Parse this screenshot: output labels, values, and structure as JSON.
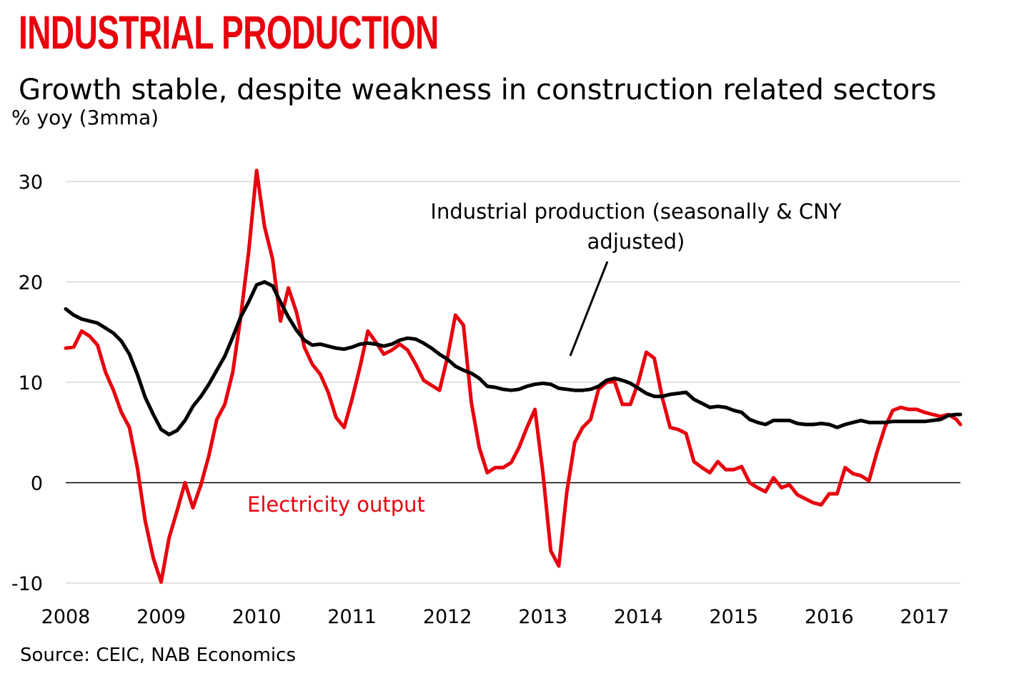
{
  "header": {
    "title": "INDUSTRIAL PRODUCTION",
    "subtitle": "Growth stable, despite weakness in construction related sectors",
    "unit": "% yoy (3mma)"
  },
  "footer": {
    "source": "Source: CEIC, NAB Economics"
  },
  "colors": {
    "title": "#e8000d",
    "electricity": "#e8000d",
    "industrial": "#000000",
    "grid": "#d0d0d0",
    "zero_line": "#000000"
  },
  "chart_data": {
    "type": "line",
    "title": "INDUSTRIAL PRODUCTION",
    "subtitle": "Growth stable, despite weakness in construction related sectors",
    "ylabel": "% yoy (3mma)",
    "xlim": [
      2008.0,
      2017.375
    ],
    "ylim": [
      -10,
      30
    ],
    "x_ticks": [
      "2008",
      "2009",
      "2010",
      "2011",
      "2012",
      "2013",
      "2014",
      "2015",
      "2016",
      "2017"
    ],
    "y_ticks": [
      "30",
      "20",
      "10",
      "0",
      "-10"
    ],
    "y_tick_values": [
      30,
      20,
      10,
      0,
      -10
    ],
    "grid": true,
    "annotations": [
      {
        "text": "Industrial production (seasonally & CNY adjusted)",
        "series": "Industrial production (seasonally & CNY adjusted)"
      },
      {
        "text": "Electricity output",
        "series": "Electricity output"
      }
    ],
    "series": [
      {
        "name": "Industrial production (seasonally & CNY adjusted)",
        "color": "#000000",
        "points": [
          [
            2008.0,
            17.3
          ],
          [
            2008.083,
            16.7
          ],
          [
            2008.167,
            16.3
          ],
          [
            2008.25,
            16.1
          ],
          [
            2008.333,
            15.9
          ],
          [
            2008.417,
            15.4
          ],
          [
            2008.5,
            14.9
          ],
          [
            2008.583,
            14.1
          ],
          [
            2008.667,
            12.8
          ],
          [
            2008.75,
            10.8
          ],
          [
            2008.833,
            8.5
          ],
          [
            2008.917,
            6.8
          ],
          [
            2009.0,
            5.3
          ],
          [
            2009.083,
            4.8
          ],
          [
            2009.167,
            5.2
          ],
          [
            2009.25,
            6.2
          ],
          [
            2009.333,
            7.6
          ],
          [
            2009.417,
            8.6
          ],
          [
            2009.5,
            9.8
          ],
          [
            2009.583,
            11.2
          ],
          [
            2009.667,
            12.6
          ],
          [
            2009.75,
            14.5
          ],
          [
            2009.833,
            16.5
          ],
          [
            2009.917,
            18.0
          ],
          [
            2010.0,
            19.7
          ],
          [
            2010.083,
            20.0
          ],
          [
            2010.167,
            19.6
          ],
          [
            2010.25,
            18.0
          ],
          [
            2010.333,
            16.5
          ],
          [
            2010.417,
            15.2
          ],
          [
            2010.5,
            14.2
          ],
          [
            2010.583,
            13.7
          ],
          [
            2010.667,
            13.8
          ],
          [
            2010.75,
            13.6
          ],
          [
            2010.833,
            13.4
          ],
          [
            2010.917,
            13.3
          ],
          [
            2011.0,
            13.5
          ],
          [
            2011.083,
            13.8
          ],
          [
            2011.167,
            13.9
          ],
          [
            2011.25,
            13.8
          ],
          [
            2011.333,
            13.6
          ],
          [
            2011.417,
            13.8
          ],
          [
            2011.5,
            14.2
          ],
          [
            2011.583,
            14.4
          ],
          [
            2011.667,
            14.3
          ],
          [
            2011.75,
            13.9
          ],
          [
            2011.833,
            13.4
          ],
          [
            2011.917,
            12.8
          ],
          [
            2012.0,
            12.3
          ],
          [
            2012.083,
            11.6
          ],
          [
            2012.167,
            11.2
          ],
          [
            2012.25,
            10.9
          ],
          [
            2012.333,
            10.4
          ],
          [
            2012.417,
            9.6
          ],
          [
            2012.5,
            9.5
          ],
          [
            2012.583,
            9.3
          ],
          [
            2012.667,
            9.2
          ],
          [
            2012.75,
            9.3
          ],
          [
            2012.833,
            9.6
          ],
          [
            2012.917,
            9.8
          ],
          [
            2013.0,
            9.9
          ],
          [
            2013.083,
            9.8
          ],
          [
            2013.167,
            9.4
          ],
          [
            2013.25,
            9.3
          ],
          [
            2013.333,
            9.2
          ],
          [
            2013.417,
            9.2
          ],
          [
            2013.5,
            9.3
          ],
          [
            2013.583,
            9.6
          ],
          [
            2013.667,
            10.2
          ],
          [
            2013.75,
            10.4
          ],
          [
            2013.833,
            10.2
          ],
          [
            2013.917,
            9.9
          ],
          [
            2014.0,
            9.4
          ],
          [
            2014.083,
            8.9
          ],
          [
            2014.167,
            8.6
          ],
          [
            2014.25,
            8.6
          ],
          [
            2014.333,
            8.8
          ],
          [
            2014.417,
            8.9
          ],
          [
            2014.5,
            9.0
          ],
          [
            2014.583,
            8.3
          ],
          [
            2014.667,
            7.9
          ],
          [
            2014.75,
            7.5
          ],
          [
            2014.833,
            7.6
          ],
          [
            2014.917,
            7.5
          ],
          [
            2015.0,
            7.2
          ],
          [
            2015.083,
            7.0
          ],
          [
            2015.167,
            6.3
          ],
          [
            2015.25,
            6.0
          ],
          [
            2015.333,
            5.8
          ],
          [
            2015.417,
            6.2
          ],
          [
            2015.5,
            6.2
          ],
          [
            2015.583,
            6.2
          ],
          [
            2015.667,
            5.9
          ],
          [
            2015.75,
            5.8
          ],
          [
            2015.833,
            5.8
          ],
          [
            2015.917,
            5.9
          ],
          [
            2016.0,
            5.8
          ],
          [
            2016.083,
            5.5
          ],
          [
            2016.167,
            5.8
          ],
          [
            2016.25,
            6.0
          ],
          [
            2016.333,
            6.2
          ],
          [
            2016.417,
            6.0
          ],
          [
            2016.5,
            6.0
          ],
          [
            2016.583,
            6.0
          ],
          [
            2016.667,
            6.1
          ],
          [
            2016.75,
            6.1
          ],
          [
            2016.833,
            6.1
          ],
          [
            2016.917,
            6.1
          ],
          [
            2017.0,
            6.1
          ],
          [
            2017.083,
            6.2
          ],
          [
            2017.167,
            6.3
          ],
          [
            2017.25,
            6.7
          ],
          [
            2017.333,
            6.8
          ],
          [
            2017.375,
            6.8
          ]
        ]
      },
      {
        "name": "Electricity output",
        "color": "#e8000d",
        "points": [
          [
            2008.0,
            13.4
          ],
          [
            2008.083,
            13.5
          ],
          [
            2008.167,
            15.1
          ],
          [
            2008.25,
            14.6
          ],
          [
            2008.333,
            13.7
          ],
          [
            2008.417,
            11.0
          ],
          [
            2008.5,
            9.2
          ],
          [
            2008.583,
            7.0
          ],
          [
            2008.667,
            5.5
          ],
          [
            2008.75,
            1.5
          ],
          [
            2008.833,
            -3.8
          ],
          [
            2008.917,
            -7.5
          ],
          [
            2009.0,
            -9.9
          ],
          [
            2009.083,
            -5.5
          ],
          [
            2009.167,
            -2.8
          ],
          [
            2009.25,
            0.0
          ],
          [
            2009.333,
            -2.5
          ],
          [
            2009.417,
            -0.2
          ],
          [
            2009.5,
            2.7
          ],
          [
            2009.583,
            6.3
          ],
          [
            2009.667,
            7.8
          ],
          [
            2009.75,
            11.0
          ],
          [
            2009.833,
            16.5
          ],
          [
            2009.917,
            23.0
          ],
          [
            2010.0,
            31.1
          ],
          [
            2010.083,
            25.5
          ],
          [
            2010.167,
            22.3
          ],
          [
            2010.25,
            16.1
          ],
          [
            2010.333,
            19.4
          ],
          [
            2010.417,
            17.0
          ],
          [
            2010.5,
            13.5
          ],
          [
            2010.583,
            11.8
          ],
          [
            2010.667,
            10.8
          ],
          [
            2010.75,
            9.0
          ],
          [
            2010.833,
            6.5
          ],
          [
            2010.917,
            5.5
          ],
          [
            2011.0,
            8.3
          ],
          [
            2011.083,
            11.5
          ],
          [
            2011.167,
            15.1
          ],
          [
            2011.25,
            14.0
          ],
          [
            2011.333,
            12.8
          ],
          [
            2011.417,
            13.2
          ],
          [
            2011.5,
            13.8
          ],
          [
            2011.583,
            13.2
          ],
          [
            2011.667,
            11.8
          ],
          [
            2011.75,
            10.2
          ],
          [
            2011.833,
            9.7
          ],
          [
            2011.917,
            9.2
          ],
          [
            2012.0,
            12.5
          ],
          [
            2012.083,
            16.7
          ],
          [
            2012.167,
            15.7
          ],
          [
            2012.25,
            8.0
          ],
          [
            2012.333,
            3.5
          ],
          [
            2012.417,
            1.0
          ],
          [
            2012.5,
            1.5
          ],
          [
            2012.583,
            1.5
          ],
          [
            2012.667,
            2.0
          ],
          [
            2012.75,
            3.5
          ],
          [
            2012.833,
            5.5
          ],
          [
            2012.917,
            7.3
          ],
          [
            2013.0,
            1.0
          ],
          [
            2013.083,
            -6.8
          ],
          [
            2013.167,
            -8.3
          ],
          [
            2013.25,
            -1.0
          ],
          [
            2013.333,
            4.0
          ],
          [
            2013.417,
            5.5
          ],
          [
            2013.5,
            6.3
          ],
          [
            2013.583,
            9.3
          ],
          [
            2013.667,
            10.0
          ],
          [
            2013.75,
            10.1
          ],
          [
            2013.833,
            7.8
          ],
          [
            2013.917,
            7.8
          ],
          [
            2014.0,
            10.0
          ],
          [
            2014.083,
            13.0
          ],
          [
            2014.167,
            12.4
          ],
          [
            2014.25,
            8.5
          ],
          [
            2014.333,
            5.5
          ],
          [
            2014.417,
            5.3
          ],
          [
            2014.5,
            4.9
          ],
          [
            2014.583,
            2.1
          ],
          [
            2014.667,
            1.5
          ],
          [
            2014.75,
            1.0
          ],
          [
            2014.833,
            2.1
          ],
          [
            2014.917,
            1.3
          ],
          [
            2015.0,
            1.3
          ],
          [
            2015.083,
            1.6
          ],
          [
            2015.167,
            0.0
          ],
          [
            2015.25,
            -0.5
          ],
          [
            2015.333,
            -0.9
          ],
          [
            2015.417,
            0.5
          ],
          [
            2015.5,
            -0.5
          ],
          [
            2015.583,
            -0.2
          ],
          [
            2015.667,
            -1.2
          ],
          [
            2015.75,
            -1.6
          ],
          [
            2015.833,
            -2.0
          ],
          [
            2015.917,
            -2.2
          ],
          [
            2016.0,
            -1.1
          ],
          [
            2016.083,
            -1.1
          ],
          [
            2016.167,
            1.5
          ],
          [
            2016.25,
            0.9
          ],
          [
            2016.333,
            0.7
          ],
          [
            2016.417,
            0.2
          ],
          [
            2016.5,
            3.0
          ],
          [
            2016.583,
            5.5
          ],
          [
            2016.667,
            7.2
          ],
          [
            2016.75,
            7.5
          ],
          [
            2016.833,
            7.3
          ],
          [
            2016.917,
            7.3
          ],
          [
            2017.0,
            7.0
          ],
          [
            2017.083,
            6.8
          ],
          [
            2017.167,
            6.6
          ],
          [
            2017.25,
            6.8
          ],
          [
            2017.333,
            6.3
          ],
          [
            2017.375,
            5.8
          ]
        ]
      }
    ]
  }
}
